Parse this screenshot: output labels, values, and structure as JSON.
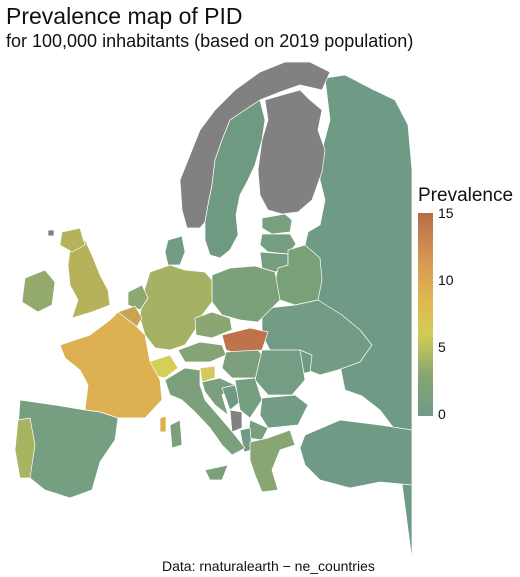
{
  "title": "Prevalence map of PID",
  "subtitle": "for 100,000 inhabitants (based on 2019 population)",
  "caption": "Data: rnaturalearth − ne_countries",
  "legend": {
    "title": "Prevalence",
    "ticks": [
      "15",
      "10",
      "5",
      "0"
    ],
    "range": [
      0,
      15
    ],
    "colors": {
      "low": "#6e9a86",
      "mid": "#d0cc55",
      "high": "#b86c48",
      "no_data": "#818181"
    }
  }
}
